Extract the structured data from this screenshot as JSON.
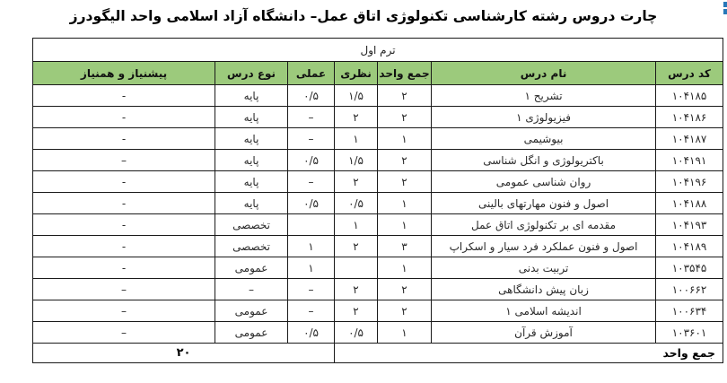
{
  "page": {
    "title": "چارت دروس رشته کارشناسی تکنولوژی اتاق عمل– دانشگاه آزاد اسلامی واحد الیگودرز"
  },
  "colors": {
    "header_green": "#9cca7c",
    "accent_blue": "#2878b8"
  },
  "table": {
    "term_header": "ترم اول",
    "columns": {
      "code": "کد درس",
      "name": "نام درس",
      "total_units": "جمع واحد",
      "theory": "نظری",
      "practical": "عملی",
      "course_type": "نوع درس",
      "prerequisite": "پیشنیاز و همنیاز"
    },
    "rows": [
      {
        "code": "۱۰۴۱۸۵",
        "name": "تشریح ۱",
        "total": "۲",
        "theory": "۱/۵",
        "practical": "۰/۵",
        "type": "پایه",
        "prereq": "-"
      },
      {
        "code": "۱۰۴۱۸۶",
        "name": "فیزیولوژی ۱",
        "total": "۲",
        "theory": "۲",
        "practical": "–",
        "type": "پایه",
        "prereq": "-"
      },
      {
        "code": "۱۰۴۱۸۷",
        "name": "بیوشیمی",
        "total": "۱",
        "theory": "۱",
        "practical": "–",
        "type": "پایه",
        "prereq": "-"
      },
      {
        "code": "۱۰۴۱۹۱",
        "name": "باکتریولوژی و انگل شناسی",
        "total": "۲",
        "theory": "۱/۵",
        "practical": "۰/۵",
        "type": "پایه",
        "prereq": "–"
      },
      {
        "code": "۱۰۴۱۹۶",
        "name": "روان شناسی عمومی",
        "total": "۲",
        "theory": "۲",
        "practical": "–",
        "type": "پایه",
        "prereq": "-"
      },
      {
        "code": "۱۰۴۱۸۸",
        "name": "اصول و فنون مهارتهای بالینی",
        "total": "۱",
        "theory": "۰/۵",
        "practical": "۰/۵",
        "type": "پایه",
        "prereq": "-"
      },
      {
        "code": "۱۰۴۱۹۳",
        "name": "مقدمه ای بر تکنولوژی اتاق عمل",
        "total": "۱",
        "theory": "۱",
        "practical": "",
        "type": "تخصصی",
        "prereq": "-"
      },
      {
        "code": "۱۰۴۱۸۹",
        "name": "اصول و فنون عملکرد فرد سیار و اسکراپ",
        "total": "۳",
        "theory": "۲",
        "practical": "۱",
        "type": "تخصصی",
        "prereq": "-"
      },
      {
        "code": "۱۰۳۵۴۵",
        "name": "تربیت بدنی",
        "total": "۱",
        "theory": "",
        "practical": "۱",
        "type": "عمومی",
        "prereq": "-"
      },
      {
        "code": "۱۰۰۶۶۲",
        "name": "زبان پیش دانشگاهی",
        "total": "۲",
        "theory": "۲",
        "practical": "–",
        "type": "–",
        "prereq": "–"
      },
      {
        "code": "۱۰۰۶۳۴",
        "name": "اندیشه اسلامی ۱",
        "total": "۲",
        "theory": "۲",
        "practical": "–",
        "type": "عمومی",
        "prereq": "–"
      },
      {
        "code": "۱۰۳۶۰۱",
        "name": "آموزش قرآن",
        "total": "۱",
        "theory": "۰/۵",
        "practical": "۰/۵",
        "type": "عمومی",
        "prereq": "–"
      }
    ],
    "footer": {
      "label": "جمع واحد",
      "total": "۲۰"
    }
  }
}
